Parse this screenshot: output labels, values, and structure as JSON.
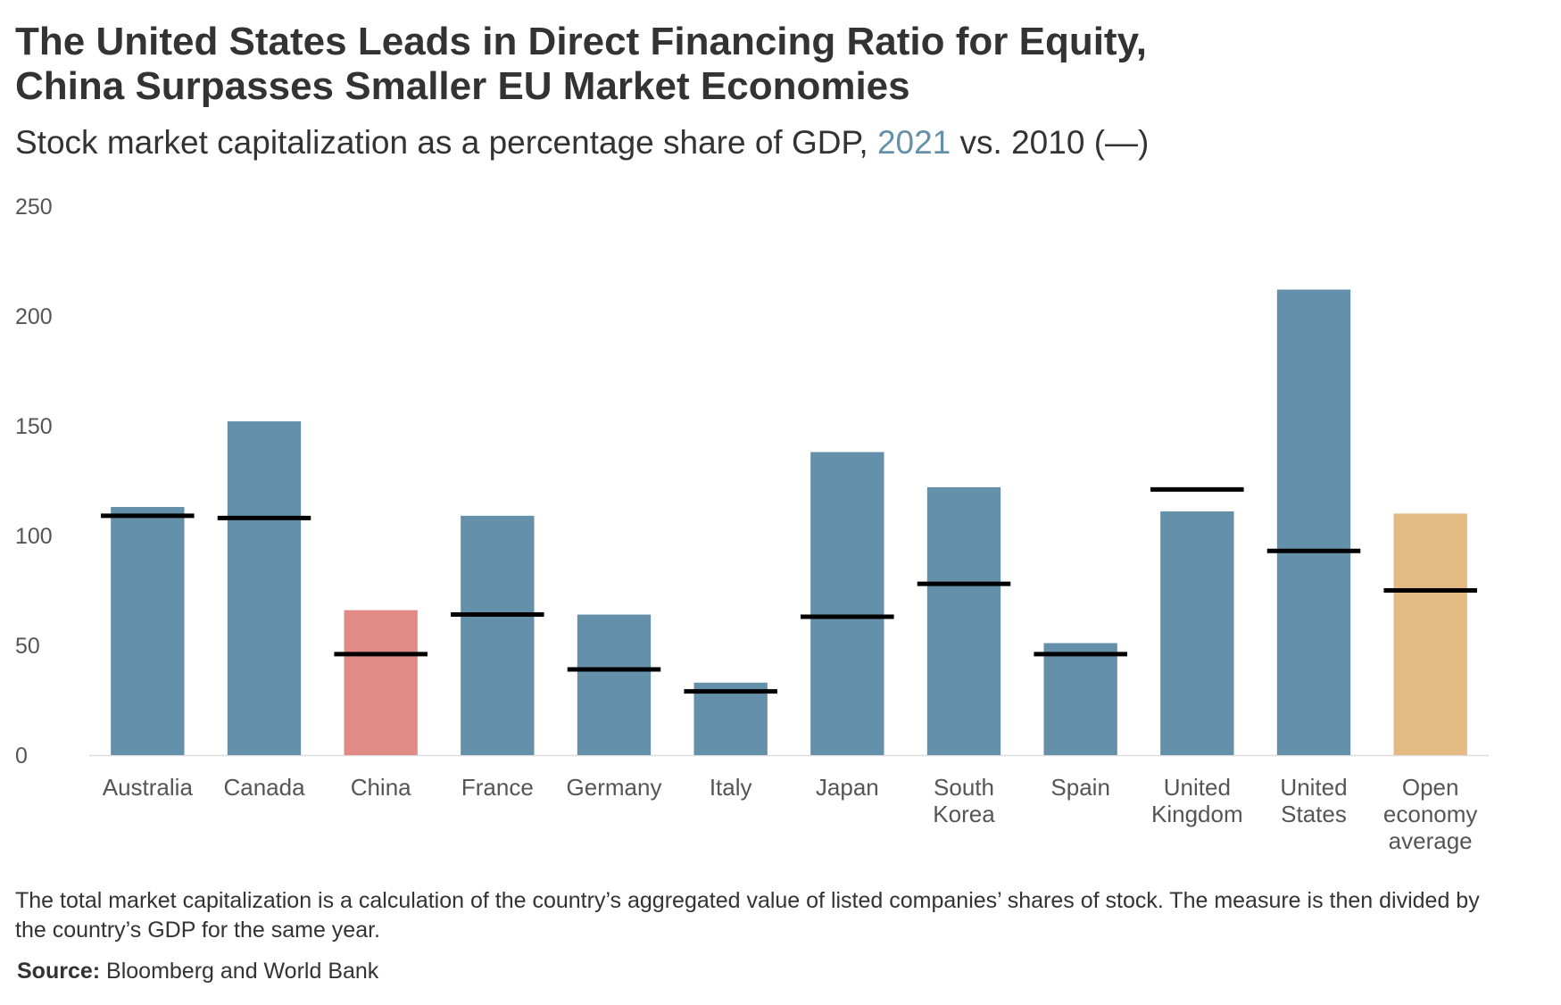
{
  "title": {
    "line1": "The United States Leads in Direct Financing Ratio for Equity,",
    "line2": "China Surpasses Smaller EU Market Economies"
  },
  "subtitle": {
    "prefix": "Stock market capitalization as a percentage share of GDP, ",
    "highlight": "2021",
    "suffix": " vs. 2010 (—)"
  },
  "note": "The total market capitalization is a calculation of the country’s aggregated value of listed companies’ shares of stock. The measure is then divided by the country’s GDP for the same year.",
  "source": {
    "label": "Source:",
    "text": " Bloomberg and World Bank"
  },
  "colors": {
    "bar": "#6590aa",
    "china": "#e28a86",
    "average": "#e3b984",
    "marker": "#000000",
    "axis_text": "#555555",
    "baseline": "#dddddd"
  },
  "chart_data": {
    "type": "bar",
    "title": "The United States Leads in Direct Financing Ratio for Equity, China Surpasses Smaller EU Market Economies",
    "subtitle": "Stock market capitalization as a percentage share of GDP, 2021 vs. 2010 (—)",
    "xlabel": "",
    "ylabel": "",
    "ylim": [
      0,
      250
    ],
    "yticks": [
      0,
      50,
      100,
      150,
      200,
      250
    ],
    "grid": false,
    "categories": [
      {
        "label": [
          "Australia"
        ],
        "value_2021": 113,
        "value_2010": 109,
        "highlight": "bar"
      },
      {
        "label": [
          "Canada"
        ],
        "value_2021": 152,
        "value_2010": 108,
        "highlight": "bar"
      },
      {
        "label": [
          "China"
        ],
        "value_2021": 66,
        "value_2010": 46,
        "highlight": "china"
      },
      {
        "label": [
          "France"
        ],
        "value_2021": 109,
        "value_2010": 64,
        "highlight": "bar"
      },
      {
        "label": [
          "Germany"
        ],
        "value_2021": 64,
        "value_2010": 39,
        "highlight": "bar"
      },
      {
        "label": [
          "Italy"
        ],
        "value_2021": 33,
        "value_2010": 29,
        "highlight": "bar"
      },
      {
        "label": [
          "Japan"
        ],
        "value_2021": 138,
        "value_2010": 63,
        "highlight": "bar"
      },
      {
        "label": [
          "South",
          "Korea"
        ],
        "value_2021": 122,
        "value_2010": 78,
        "highlight": "bar"
      },
      {
        "label": [
          "Spain"
        ],
        "value_2021": 51,
        "value_2010": 46,
        "highlight": "bar"
      },
      {
        "label": [
          "United",
          "Kingdom"
        ],
        "value_2021": 111,
        "value_2010": 121,
        "highlight": "bar"
      },
      {
        "label": [
          "United",
          "States"
        ],
        "value_2021": 212,
        "value_2010": 93,
        "highlight": "bar"
      },
      {
        "label": [
          "Open",
          "economy",
          "average"
        ],
        "value_2021": 110,
        "value_2010": 75,
        "highlight": "average"
      }
    ],
    "series": [
      {
        "name": "2021",
        "style": "bar"
      },
      {
        "name": "2010",
        "style": "marker line"
      }
    ]
  }
}
